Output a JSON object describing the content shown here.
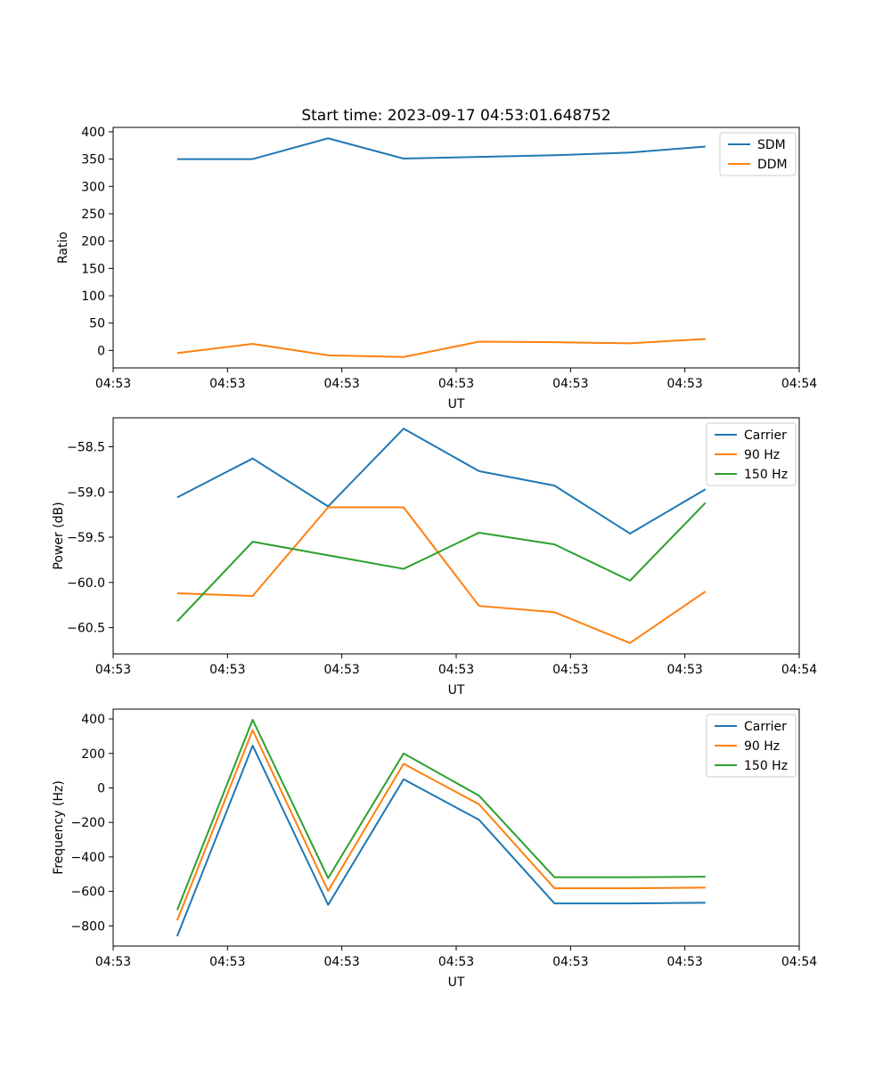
{
  "figure": {
    "title": "Start time: 2023-09-17 04:53:01.648752",
    "xlabel": "UT",
    "background": "#ffffff",
    "text_color": "#000000"
  },
  "chart_data": [
    {
      "id": "ratio",
      "type": "line",
      "ylabel": "Ratio",
      "xlabel": "UT",
      "ylim": [
        -32,
        408
      ],
      "yticks": [
        0,
        50,
        100,
        150,
        200,
        250,
        300,
        350,
        400
      ],
      "ytick_labels": [
        "0",
        "50",
        "100",
        "150",
        "200",
        "250",
        "300",
        "350",
        "400"
      ],
      "xlim": [
        0,
        60
      ],
      "xticks": [
        0,
        10,
        20,
        30,
        40,
        50,
        60
      ],
      "xtick_labels": [
        "04:53",
        "04:53",
        "04:53",
        "04:53",
        "04:53",
        "04:53",
        "04:54"
      ],
      "x": [
        5.6,
        12.2,
        18.8,
        25.4,
        32.0,
        38.6,
        45.2,
        51.8
      ],
      "grid": false,
      "legend_position": "upper right",
      "series": [
        {
          "name": "SDM",
          "color": "#1f77b4",
          "values": [
            350,
            350,
            388,
            351,
            354,
            357,
            362,
            373
          ]
        },
        {
          "name": "DDM",
          "color": "#ff7f0e",
          "values": [
            -5,
            12,
            -9,
            -12,
            16,
            15,
            13,
            21
          ]
        }
      ]
    },
    {
      "id": "power",
      "type": "line",
      "ylabel": "Power (dB)",
      "xlabel": "UT",
      "ylim": [
        -60.79,
        -58.18
      ],
      "yticks": [
        -58.5,
        -59.0,
        -59.5,
        -60.0,
        -60.5
      ],
      "ytick_labels": [
        "−58.5",
        "−59.0",
        "−59.5",
        "−60.0",
        "−60.5"
      ],
      "xlim": [
        0,
        60
      ],
      "xticks": [
        0,
        10,
        20,
        30,
        40,
        50,
        60
      ],
      "xtick_labels": [
        "04:53",
        "04:53",
        "04:53",
        "04:53",
        "04:53",
        "04:53",
        "04:54"
      ],
      "x": [
        5.6,
        12.2,
        18.8,
        25.4,
        32.0,
        38.6,
        45.2,
        51.8
      ],
      "grid": false,
      "legend_position": "upper right",
      "series": [
        {
          "name": "Carrier",
          "color": "#1f77b4",
          "values": [
            -59.06,
            -58.63,
            -59.16,
            -58.3,
            -58.77,
            -58.93,
            -59.46,
            -58.97
          ]
        },
        {
          "name": "90 Hz",
          "color": "#ff7f0e",
          "values": [
            -60.12,
            -60.15,
            -59.17,
            -59.17,
            -60.26,
            -60.33,
            -60.67,
            -60.1
          ]
        },
        {
          "name": "150 Hz",
          "color": "#2ca02c",
          "values": [
            -60.43,
            -59.55,
            -59.7,
            -59.85,
            -59.45,
            -59.58,
            -59.98,
            -59.12
          ]
        }
      ]
    },
    {
      "id": "frequency",
      "type": "line",
      "ylabel": "Frequency (Hz)",
      "xlabel": "UT",
      "ylim": [
        -917,
        457
      ],
      "yticks": [
        400,
        200,
        0,
        -200,
        -400,
        -600,
        -800
      ],
      "ytick_labels": [
        "400",
        "200",
        "0",
        "−200",
        "−400",
        "−600",
        "−800"
      ],
      "xlim": [
        0,
        60
      ],
      "xticks": [
        0,
        10,
        20,
        30,
        40,
        50,
        60
      ],
      "xtick_labels": [
        "04:53",
        "04:53",
        "04:53",
        "04:53",
        "04:53",
        "04:53",
        "04:54"
      ],
      "x": [
        5.6,
        12.2,
        18.8,
        25.4,
        32.0,
        38.6,
        45.2,
        51.8
      ],
      "grid": false,
      "legend_position": "upper right",
      "series": [
        {
          "name": "Carrier",
          "color": "#1f77b4",
          "values": [
            -860,
            245,
            -678,
            50,
            -185,
            -670,
            -670,
            -666
          ]
        },
        {
          "name": "90 Hz",
          "color": "#ff7f0e",
          "values": [
            -768,
            335,
            -597,
            140,
            -95,
            -582,
            -582,
            -578
          ]
        },
        {
          "name": "150 Hz",
          "color": "#2ca02c",
          "values": [
            -708,
            395,
            -523,
            200,
            -45,
            -518,
            -518,
            -515
          ]
        }
      ]
    }
  ]
}
